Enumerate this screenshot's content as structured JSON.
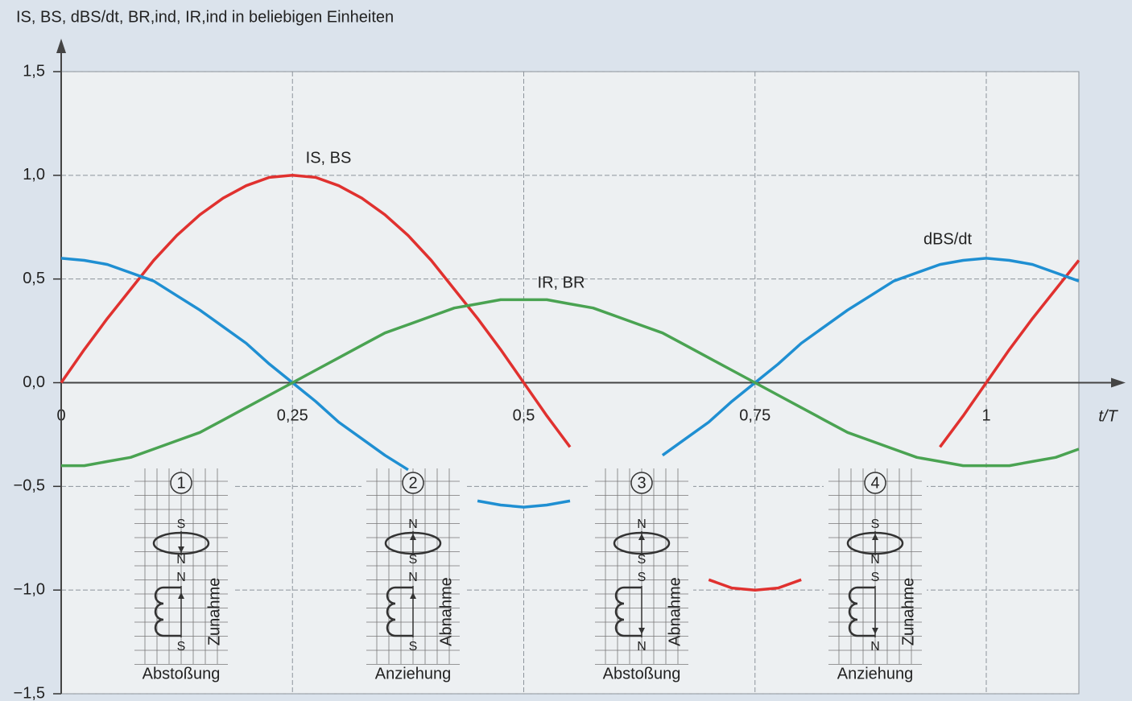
{
  "chart_data": {
    "type": "line",
    "y_label": "IS, BS, dBS/dt, BR,ind, IR,ind in beliebigen Einheiten",
    "x_label": "t/T",
    "x": [
      0,
      0.025,
      0.05,
      0.075,
      0.1,
      0.125,
      0.15,
      0.175,
      0.2,
      0.225,
      0.25,
      0.275,
      0.3,
      0.325,
      0.35,
      0.375,
      0.4,
      0.425,
      0.45,
      0.475,
      0.5,
      0.525,
      0.55,
      0.575,
      0.6,
      0.625,
      0.65,
      0.675,
      0.7,
      0.725,
      0.75,
      0.775,
      0.8,
      0.825,
      0.85,
      0.875,
      0.9,
      0.925,
      0.95,
      0.975,
      1,
      1.025,
      1.05,
      1.075,
      1.1
    ],
    "series": [
      {
        "name": "IS, BS",
        "color": "#e0312f",
        "values": [
          0,
          0.16,
          0.31,
          0.45,
          0.59,
          0.71,
          0.81,
          0.89,
          0.95,
          0.99,
          1,
          0.99,
          0.95,
          0.89,
          0.81,
          0.71,
          0.59,
          0.45,
          0.31,
          0.16,
          0,
          -0.16,
          -0.31,
          null,
          null,
          null,
          null,
          null,
          -0.95,
          -0.99,
          -1,
          -0.99,
          -0.95,
          null,
          null,
          null,
          null,
          null,
          -0.31,
          -0.16,
          0,
          0.16,
          0.31,
          0.45,
          0.59
        ]
      },
      {
        "name": "dBS/dt",
        "color": "#1f8fd2",
        "values": [
          0.6,
          0.59,
          0.57,
          0.53,
          0.49,
          0.42,
          0.35,
          0.27,
          0.19,
          0.09,
          0,
          -0.09,
          -0.19,
          -0.27,
          -0.35,
          -0.42,
          null,
          null,
          -0.57,
          -0.59,
          -0.6,
          -0.59,
          -0.57,
          null,
          null,
          null,
          -0.35,
          -0.27,
          -0.19,
          -0.09,
          0,
          0.09,
          0.19,
          0.27,
          0.35,
          0.42,
          0.49,
          0.53,
          0.57,
          0.59,
          0.6,
          0.59,
          0.57,
          0.53,
          0.49
        ]
      },
      {
        "name": "IR, BR",
        "color": "#4aa352",
        "values": [
          -0.4,
          -0.4,
          -0.38,
          -0.36,
          -0.32,
          -0.28,
          -0.24,
          -0.18,
          -0.12,
          -0.06,
          0,
          0.06,
          0.12,
          0.18,
          0.24,
          0.28,
          0.32,
          0.36,
          0.38,
          0.4,
          0.4,
          0.4,
          0.38,
          0.36,
          0.32,
          0.28,
          0.24,
          0.18,
          0.12,
          0.06,
          0,
          -0.06,
          -0.12,
          -0.18,
          -0.24,
          -0.28,
          -0.32,
          -0.36,
          -0.38,
          -0.4,
          -0.4,
          -0.4,
          -0.38,
          -0.36,
          -0.32
        ]
      }
    ],
    "xlim": [
      0,
      1.1
    ],
    "ylim": [
      -1.5,
      1.5
    ],
    "xticks": [
      0,
      {
        "value": 0.25,
        "label": "0,25"
      },
      {
        "value": 0.5,
        "label": "0,5"
      },
      {
        "value": 0.75,
        "label": "0,75"
      },
      1
    ],
    "yticks": [
      {
        "value": -1.5,
        "label": "−1,5"
      },
      {
        "value": -1,
        "label": "−1,0"
      },
      {
        "value": -0.5,
        "label": "−0,5"
      },
      {
        "value": 0,
        "label": "0,0"
      },
      {
        "value": 0.5,
        "label": "0,5"
      },
      {
        "value": 1,
        "label": "1,0"
      },
      {
        "value": 1.5,
        "label": "1,5"
      }
    ],
    "grid": true,
    "insets": [
      {
        "number": "1",
        "ring_top": "S",
        "ring_bottom": "N",
        "coil_top": "N",
        "coil_bottom": "S",
        "side": "Zunahme",
        "caption": "Abstoßung"
      },
      {
        "number": "2",
        "ring_top": "N",
        "ring_bottom": "S",
        "coil_top": "N",
        "coil_bottom": "S",
        "side": "Abnahme",
        "caption": "Anziehung"
      },
      {
        "number": "3",
        "ring_top": "N",
        "ring_bottom": "S",
        "coil_top": "S",
        "coil_bottom": "N",
        "side": "Abnahme",
        "caption": "Abstoßung"
      },
      {
        "number": "4",
        "ring_top": "S",
        "ring_bottom": "N",
        "coil_top": "S",
        "coil_bottom": "N",
        "side": "Zunahme",
        "caption": "Anziehung"
      }
    ]
  }
}
